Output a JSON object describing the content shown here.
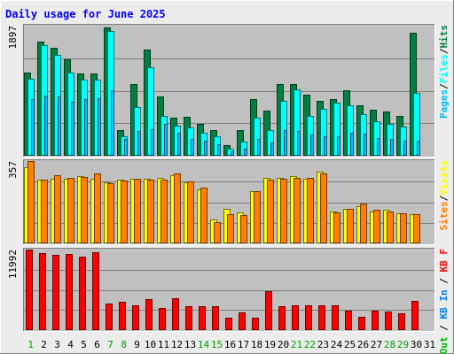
{
  "chart_data": {
    "type": "bar",
    "title": "Daily usage for June 2025",
    "days": [
      "1",
      "2",
      "3",
      "4",
      "5",
      "6",
      "7",
      "8",
      "9",
      "10",
      "11",
      "12",
      "13",
      "14",
      "15",
      "16",
      "17",
      "18",
      "19",
      "20",
      "21",
      "22",
      "23",
      "24",
      "25",
      "26",
      "27",
      "28",
      "29",
      "30",
      "31"
    ],
    "weekend_days": [
      "1",
      "7",
      "8",
      "14",
      "15",
      "21",
      "22",
      "28",
      "29"
    ],
    "colors": {
      "background": "#ececec",
      "plot": "#c0c0c0",
      "title": "#0000ff",
      "hits": "#008040",
      "files": "#00ffff",
      "pages": "#00c0ff",
      "visits": "#ffff00",
      "sites": "#ff8000",
      "kbytes": "#ff0000",
      "weekend": "#00a000",
      "weekday": "#000000"
    },
    "panels": [
      {
        "id": "hits-files-pages",
        "max_label": "1897",
        "ylim": [
          0,
          1897
        ],
        "legend": [
          {
            "text": "Hits",
            "color": "#008040"
          },
          {
            "text": "Files",
            "color": "#00ffff"
          },
          {
            "text": "Pages",
            "color": "#00c0ff"
          }
        ],
        "series": [
          {
            "name": "Hits",
            "color": "#008040",
            "values": [
              1210,
              1660,
              1570,
              1410,
              1200,
              1200,
              1870,
              380,
              1040,
              1550,
              860,
              560,
              570,
              470,
              370,
              160,
              380,
              820,
              660,
              1050,
              1050,
              890,
              800,
              820,
              950,
              730,
              670,
              650,
              580,
              1790,
              null
            ]
          },
          {
            "name": "Files",
            "color": "#00ffff",
            "values": [
              1120,
              1610,
              1470,
              1210,
              1110,
              1110,
              1820,
              280,
              710,
              1290,
              580,
              440,
              410,
              330,
              280,
              100,
              210,
              560,
              370,
              800,
              970,
              580,
              680,
              770,
              730,
              610,
              500,
              470,
              430,
              920,
              null
            ]
          },
          {
            "name": "Pages",
            "color": "#00c0ff",
            "values": [
              820,
              880,
              870,
              790,
              830,
              840,
              950,
              250,
              360,
              390,
              470,
              330,
              250,
              220,
              170,
              60,
              100,
              250,
              190,
              370,
              360,
              310,
              290,
              290,
              340,
              320,
              260,
              250,
              220,
              220,
              null
            ]
          }
        ]
      },
      {
        "id": "sites-visits",
        "max_label": "357",
        "ylim": [
          0,
          357
        ],
        "legend": [
          {
            "text": "Visits",
            "color": "#ffff00"
          },
          {
            "text": "Sites",
            "color": "#ff8000"
          }
        ],
        "series": [
          {
            "name": "Visits",
            "color": "#ffff00",
            "values": [
              330,
              275,
              280,
              280,
              290,
              280,
              265,
              275,
              280,
              280,
              285,
              295,
              265,
              235,
              105,
              150,
              135,
              225,
              285,
              285,
              290,
              280,
              310,
              140,
              150,
              160,
              140,
              145,
              130,
              125,
              null
            ]
          },
          {
            "name": "Sites",
            "color": "#ff8000",
            "values": [
              357,
              276,
              297,
              284,
              286,
              304,
              262,
              271,
              279,
              276,
              278,
              304,
              268,
              240,
              91,
              126,
              124,
              228,
              276,
              282,
              283,
              285,
              304,
              136,
              148,
              174,
              146,
              140,
              130,
              127,
              null
            ]
          }
        ]
      },
      {
        "id": "kbytes",
        "max_label": "11992",
        "ylim": [
          0,
          11992
        ],
        "legend": [
          {
            "text": "KB F",
            "color": "#ff0000"
          },
          {
            "text": "KB In",
            "color": "#0080ff"
          },
          {
            "text": "KB Out",
            "color": "#00c000"
          }
        ],
        "separators": [
          " / ",
          " / "
        ],
        "series": [
          {
            "name": "KB F",
            "color": "#ff0000",
            "values": [
              11992,
              11420,
              11210,
              11370,
              11000,
              11550,
              3990,
              4280,
              3690,
              4600,
              3350,
              4740,
              3520,
              3520,
              3550,
              1820,
              2640,
              1790,
              5860,
              3600,
              3720,
              3640,
              3640,
              3640,
              2890,
              1920,
              2880,
              2790,
              2500,
              4310,
              null
            ]
          }
        ]
      }
    ]
  }
}
